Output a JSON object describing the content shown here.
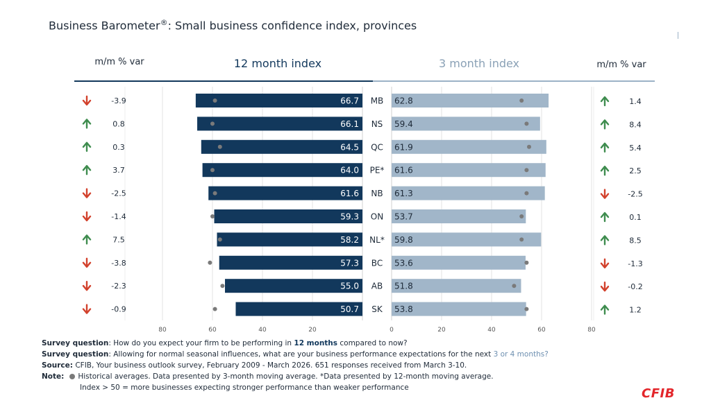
{
  "title": {
    "prefix": "Business Barometer",
    "reg": "®",
    "suffix": ": Small business confidence index, provinces"
  },
  "headers": {
    "mm_left": "m/m % var",
    "twelve": "12 month index",
    "three": "3 month index",
    "mm_right": "m/m % var"
  },
  "colors": {
    "dark_bar": "#12385c",
    "light_bar": "#a1b6c9",
    "up": "#3e8c4e",
    "down": "#d2412c",
    "dot": "#7a7a7a"
  },
  "chart_data": {
    "type": "bar",
    "categories": [
      "MB",
      "NS",
      "QC",
      "PE*",
      "NB",
      "ON",
      "NL*",
      "BC",
      "AB",
      "SK"
    ],
    "series": [
      {
        "name": "12 month index",
        "values": [
          66.7,
          66.1,
          64.5,
          64.0,
          61.6,
          59.3,
          58.2,
          57.3,
          55.0,
          50.7
        ],
        "historical": [
          59,
          60,
          57,
          60,
          59,
          60,
          57,
          61,
          56,
          59
        ]
      },
      {
        "name": "3 month index",
        "values": [
          62.8,
          59.4,
          61.9,
          61.6,
          61.3,
          53.7,
          59.8,
          53.6,
          51.8,
          53.8
        ],
        "historical": [
          52,
          54,
          55,
          54,
          54,
          52,
          52,
          54,
          49,
          54
        ]
      }
    ],
    "mm_var_12": [
      "-3.9",
      "0.8",
      "0.3",
      "3.7",
      "-2.5",
      "-1.4",
      "7.5",
      "-3.8",
      "-2.3",
      "-0.9"
    ],
    "mm_var_3": [
      "1.4",
      "8.4",
      "5.4",
      "2.5",
      "-2.5",
      "0.1",
      "8.5",
      "-1.3",
      "-0.2",
      "1.2"
    ],
    "xlim": [
      0,
      80
    ],
    "ticks_left": [
      "80",
      "60",
      "40",
      "20"
    ],
    "ticks_right": [
      "0",
      "20",
      "40",
      "60",
      "80"
    ],
    "tick_values_left": [
      80,
      60,
      40,
      20
    ],
    "tick_values_right": [
      0,
      20,
      40,
      60,
      80
    ]
  },
  "notes": {
    "q1_label": "Survey question",
    "q1_text": ": How do you expect your firm to be performing in ",
    "q1_hl": "12 months",
    "q1_end": " compared to now?",
    "q2_label": "Survey question",
    "q2_text": ": Allowing for normal seasonal influences, what are your business performance expectations for the next ",
    "q2_hl": "3 or 4 months?",
    "source_label": "Source:",
    "source_text": " CFIB, Your business outlook survey, February 2009 - March 2026. 651 responses received from March 3-10.",
    "note_label": "Note:",
    "note_text1": "Historical averages. Data presented by 3-month moving average. *Data presented by 12-month moving average.",
    "note_text2": "Index > 50 = more businesses expecting stronger performance than weaker performance"
  },
  "logo": "CFIB"
}
